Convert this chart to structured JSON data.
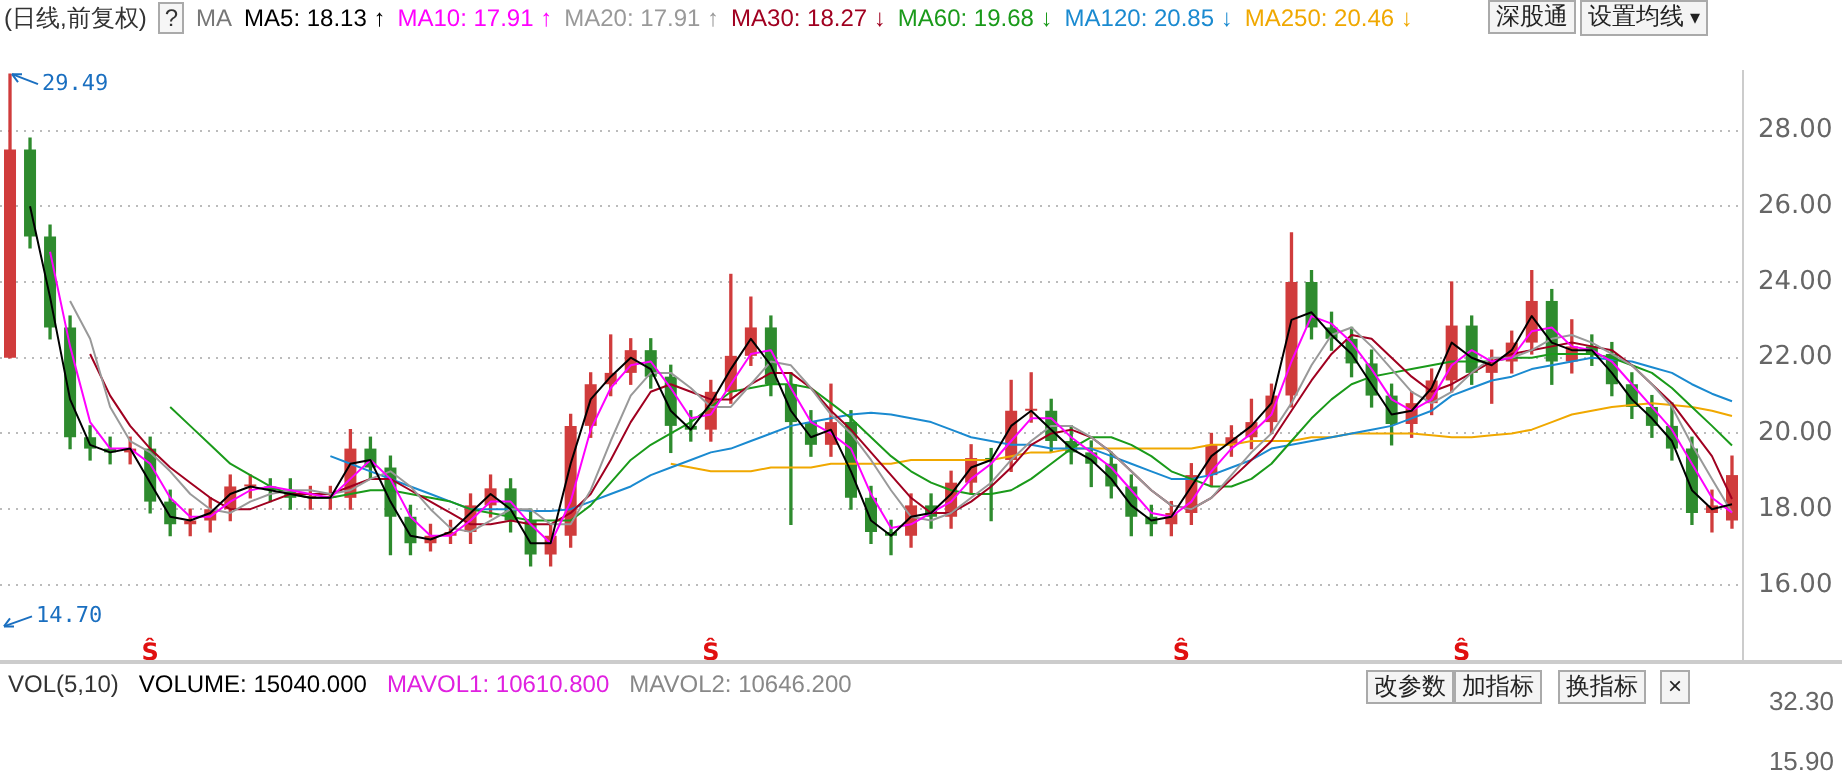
{
  "chart_data": [
    {
      "type": "candlestick",
      "title": "(日线,前复权)",
      "legend_title": "MA",
      "legend": "top left",
      "grid": "y",
      "tick_labels": "y",
      "marker": "none",
      "line_style": "solid",
      "categories": [
        null,
        null,
        null,
        null,
        null,
        null,
        null,
        null,
        null,
        null,
        null,
        null,
        null,
        null,
        null,
        null,
        null,
        null,
        null,
        null,
        null,
        null,
        null,
        null,
        null,
        null,
        null,
        null,
        null,
        null,
        null,
        null,
        null,
        null,
        null,
        null,
        null,
        null,
        null,
        null,
        null,
        null,
        null,
        null,
        null,
        null,
        null,
        null,
        null,
        null,
        null,
        null,
        null,
        null,
        null,
        null,
        null,
        null,
        null,
        null,
        null,
        null,
        null,
        null,
        null,
        null,
        null,
        null,
        null,
        null,
        null,
        null,
        null,
        null,
        null,
        null,
        null,
        null,
        null,
        null,
        null,
        null,
        null,
        null,
        null,
        null,
        null
      ],
      "ylim": [
        13.9,
        29.6
      ],
      "yticks": [
        {
          "value": 16,
          "label": "16.00"
        },
        {
          "value": 18,
          "label": "18.00"
        },
        {
          "value": 20,
          "label": "20.00"
        },
        {
          "value": 22,
          "label": "22.00"
        },
        {
          "value": 24,
          "label": "24.00"
        },
        {
          "value": 26,
          "label": "26.00"
        },
        {
          "value": 28,
          "label": "28.00"
        }
      ],
      "ohlc": [
        [
          22.0,
          29.49,
          22.0,
          27.5
        ],
        [
          27.5,
          27.8,
          24.9,
          25.2
        ],
        [
          25.2,
          25.5,
          22.5,
          22.8
        ],
        [
          22.8,
          23.1,
          19.6,
          19.9
        ],
        [
          19.9,
          20.2,
          19.3,
          19.6
        ],
        [
          19.6,
          19.9,
          19.2,
          19.5
        ],
        [
          19.5,
          19.9,
          19.2,
          19.6
        ],
        [
          19.6,
          19.9,
          17.9,
          18.2
        ],
        [
          18.2,
          18.5,
          17.3,
          17.6
        ],
        [
          17.6,
          18.0,
          17.3,
          17.7
        ],
        [
          17.7,
          18.3,
          17.4,
          18.0
        ],
        [
          18.0,
          18.9,
          17.7,
          18.6
        ],
        [
          18.6,
          18.9,
          18.3,
          18.6
        ],
        [
          18.6,
          18.8,
          18.2,
          18.5
        ],
        [
          18.5,
          18.8,
          18.0,
          18.3
        ],
        [
          18.3,
          18.6,
          18.0,
          18.3
        ],
        [
          18.3,
          18.6,
          18.0,
          18.3
        ],
        [
          18.3,
          20.1,
          18.0,
          19.6
        ],
        [
          19.6,
          19.9,
          18.8,
          19.1
        ],
        [
          19.1,
          19.4,
          16.8,
          17.8
        ],
        [
          17.8,
          18.1,
          16.8,
          17.1
        ],
        [
          17.1,
          17.6,
          16.9,
          17.3
        ],
        [
          17.3,
          17.7,
          17.1,
          17.4
        ],
        [
          17.4,
          18.4,
          17.1,
          18.1
        ],
        [
          18.1,
          18.9,
          17.8,
          18.55
        ],
        [
          18.55,
          18.8,
          17.4,
          17.7
        ],
        [
          17.7,
          18.0,
          16.5,
          16.8
        ],
        [
          16.8,
          17.6,
          16.5,
          17.3
        ],
        [
          17.3,
          20.5,
          17.0,
          20.2
        ],
        [
          20.2,
          21.6,
          19.9,
          21.3
        ],
        [
          21.3,
          22.6,
          21.0,
          21.6
        ],
        [
          21.6,
          22.5,
          21.3,
          22.2
        ],
        [
          22.2,
          22.5,
          21.2,
          21.5
        ],
        [
          21.5,
          21.8,
          19.5,
          20.2
        ],
        [
          20.2,
          20.6,
          19.8,
          20.1
        ],
        [
          20.1,
          21.4,
          19.8,
          21.1
        ],
        [
          21.1,
          24.2,
          20.8,
          22.05
        ],
        [
          22.05,
          23.6,
          21.8,
          22.8
        ],
        [
          22.8,
          23.1,
          21.0,
          21.3
        ],
        [
          21.3,
          21.6,
          17.6,
          20.3
        ],
        [
          20.3,
          20.6,
          19.4,
          19.7
        ],
        [
          19.7,
          21.3,
          19.4,
          20.3
        ],
        [
          20.3,
          20.6,
          18.0,
          18.3
        ],
        [
          18.3,
          18.6,
          17.1,
          17.4
        ],
        [
          17.4,
          17.7,
          16.8,
          17.3
        ],
        [
          17.3,
          18.4,
          17.0,
          18.1
        ],
        [
          18.1,
          18.4,
          17.5,
          17.8
        ],
        [
          17.8,
          19.0,
          17.5,
          18.7
        ],
        [
          18.7,
          19.7,
          18.4,
          19.35
        ],
        [
          19.35,
          19.6,
          17.7,
          19.3
        ],
        [
          19.3,
          21.4,
          19.0,
          20.6
        ],
        [
          20.6,
          21.6,
          20.3,
          20.6
        ],
        [
          20.6,
          20.9,
          19.5,
          19.8
        ],
        [
          19.8,
          20.2,
          19.2,
          19.5
        ],
        [
          19.5,
          19.8,
          18.6,
          19.2
        ],
        [
          19.2,
          19.5,
          18.3,
          18.6
        ],
        [
          18.6,
          18.9,
          17.3,
          17.8
        ],
        [
          17.8,
          18.1,
          17.3,
          17.6
        ],
        [
          17.6,
          18.2,
          17.3,
          17.9
        ],
        [
          17.9,
          19.2,
          17.6,
          18.9
        ],
        [
          18.9,
          20.0,
          18.6,
          19.7
        ],
        [
          19.7,
          20.2,
          19.4,
          19.9
        ],
        [
          19.9,
          20.9,
          19.6,
          20.3
        ],
        [
          20.3,
          21.3,
          20.0,
          21.0
        ],
        [
          21.0,
          25.3,
          20.7,
          24.0
        ],
        [
          24.0,
          24.3,
          22.5,
          22.8
        ],
        [
          22.8,
          23.2,
          22.2,
          22.5
        ],
        [
          22.5,
          22.8,
          21.5,
          21.85
        ],
        [
          21.85,
          22.2,
          20.7,
          21.0
        ],
        [
          21.0,
          21.3,
          19.7,
          20.25
        ],
        [
          20.25,
          21.1,
          19.9,
          20.8
        ],
        [
          20.8,
          21.7,
          20.5,
          21.4
        ],
        [
          21.4,
          24.0,
          21.1,
          22.85
        ],
        [
          22.85,
          23.1,
          21.3,
          21.6
        ],
        [
          21.6,
          22.2,
          20.8,
          21.9
        ],
        [
          21.9,
          22.7,
          21.6,
          22.4
        ],
        [
          22.4,
          24.3,
          22.1,
          23.5
        ],
        [
          23.5,
          23.8,
          21.3,
          21.9
        ],
        [
          21.9,
          23.0,
          21.6,
          22.3
        ],
        [
          22.3,
          22.6,
          21.8,
          22.1
        ],
        [
          22.1,
          22.4,
          21.0,
          21.3
        ],
        [
          21.3,
          21.6,
          20.4,
          20.7
        ],
        [
          20.7,
          21.0,
          19.9,
          20.2
        ],
        [
          20.2,
          20.8,
          19.3,
          19.6
        ],
        [
          19.6,
          19.9,
          17.6,
          17.9
        ],
        [
          17.9,
          18.5,
          17.4,
          18.1
        ],
        [
          17.7,
          19.4,
          17.5,
          18.9
        ]
      ],
      "colors": [
        "#d03c3c",
        "#2e8b2e",
        "#2e8b2e",
        "#2e8b2e",
        "#2e8b2e",
        "#2e8b2e",
        "#d03c3c",
        "#2e8b2e",
        "#2e8b2e",
        "#d03c3c",
        "#d03c3c",
        "#d03c3c",
        "#d03c3c",
        "#2e8b2e",
        "#2e8b2e",
        "#d03c3c",
        "#d03c3c",
        "#d03c3c",
        "#2e8b2e",
        "#2e8b2e",
        "#2e8b2e",
        "#d03c3c",
        "#d03c3c",
        "#d03c3c",
        "#d03c3c",
        "#2e8b2e",
        "#2e8b2e",
        "#d03c3c",
        "#d03c3c",
        "#d03c3c",
        "#d03c3c",
        "#d03c3c",
        "#2e8b2e",
        "#2e8b2e",
        "#2e8b2e",
        "#d03c3c",
        "#d03c3c",
        "#d03c3c",
        "#2e8b2e",
        "#2e8b2e",
        "#2e8b2e",
        "#d03c3c",
        "#2e8b2e",
        "#2e8b2e",
        "#2e8b2e",
        "#d03c3c",
        "#2e8b2e",
        "#d03c3c",
        "#d03c3c",
        "#2e8b2e",
        "#d03c3c",
        "#d03c3c",
        "#2e8b2e",
        "#2e8b2e",
        "#2e8b2e",
        "#2e8b2e",
        "#2e8b2e",
        "#2e8b2e",
        "#d03c3c",
        "#d03c3c",
        "#d03c3c",
        "#d03c3c",
        "#d03c3c",
        "#d03c3c",
        "#d03c3c",
        "#2e8b2e",
        "#2e8b2e",
        "#2e8b2e",
        "#2e8b2e",
        "#2e8b2e",
        "#d03c3c",
        "#d03c3c",
        "#d03c3c",
        "#2e8b2e",
        "#d03c3c",
        "#d03c3c",
        "#d03c3c",
        "#2e8b2e",
        "#d03c3c",
        "#2e8b2e",
        "#2e8b2e",
        "#2e8b2e",
        "#2e8b2e",
        "#2e8b2e",
        "#2e8b2e",
        "#d03c3c",
        "#d03c3c"
      ],
      "series": [
        {
          "type": "line",
          "name": "MA5: 18.13 ↑",
          "color": "#000000",
          "values": [
            null,
            26.0,
            23.6,
            20.9,
            19.7,
            19.5,
            19.6,
            18.7,
            17.8,
            17.7,
            17.9,
            18.4,
            18.6,
            18.5,
            18.4,
            18.3,
            18.3,
            19.2,
            19.3,
            18.2,
            17.3,
            17.2,
            17.4,
            17.9,
            18.4,
            18.0,
            17.1,
            17.1,
            19.2,
            20.9,
            21.5,
            22.0,
            21.7,
            20.6,
            20.1,
            20.8,
            21.7,
            22.5,
            21.8,
            20.6,
            19.9,
            20.1,
            19.0,
            17.7,
            17.3,
            17.8,
            17.9,
            18.4,
            19.1,
            19.3,
            20.2,
            20.6,
            20.1,
            19.6,
            19.3,
            18.8,
            18.1,
            17.7,
            17.8,
            18.6,
            19.4,
            19.8,
            20.2,
            20.8,
            23.0,
            23.2,
            22.6,
            22.1,
            21.3,
            20.5,
            20.6,
            21.2,
            22.4,
            22.0,
            21.8,
            22.2,
            23.1,
            22.4,
            22.2,
            22.2,
            21.6,
            20.9,
            20.4,
            19.8,
            18.5,
            18.0,
            18.13
          ]
        },
        {
          "type": "line",
          "name": "MA10: 17.91 ↑",
          "color": "#ff00ff",
          "values": [
            null,
            null,
            24.8,
            22.3,
            20.3,
            19.6,
            19.6,
            19.2,
            18.3,
            17.8,
            17.8,
            18.2,
            18.5,
            18.6,
            18.5,
            18.4,
            18.3,
            18.8,
            19.3,
            18.8,
            17.8,
            17.3,
            17.3,
            17.7,
            18.2,
            18.2,
            17.6,
            17.1,
            18.2,
            20.1,
            21.2,
            21.8,
            21.9,
            21.2,
            20.4,
            20.5,
            21.3,
            22.1,
            22.2,
            21.2,
            20.3,
            20.0,
            19.6,
            18.4,
            17.5,
            17.6,
            17.9,
            18.2,
            18.8,
            19.2,
            19.8,
            20.4,
            20.4,
            19.9,
            19.5,
            19.1,
            18.5,
            17.9,
            17.8,
            18.2,
            19.0,
            19.6,
            20.0,
            20.5,
            21.9,
            23.1,
            22.9,
            22.4,
            21.7,
            20.9,
            20.6,
            20.9,
            21.8,
            22.2,
            21.9,
            22.0,
            22.7,
            22.8,
            22.3,
            22.2,
            21.9,
            21.3,
            20.7,
            20.1,
            19.2,
            18.3,
            17.91
          ]
        },
        {
          "type": "line",
          "name": "MA20: 17.91 ↑",
          "color": "#999999",
          "values": [
            null,
            null,
            null,
            23.5,
            22.5,
            20.7,
            19.8,
            19.5,
            19.0,
            18.4,
            18.0,
            17.9,
            18.2,
            18.4,
            18.5,
            18.5,
            18.4,
            18.5,
            18.8,
            19.0,
            18.6,
            18.0,
            17.5,
            17.4,
            17.7,
            18.0,
            18.0,
            17.6,
            17.6,
            18.5,
            19.8,
            21.0,
            21.6,
            21.6,
            21.2,
            20.7,
            20.7,
            21.3,
            21.9,
            21.8,
            21.2,
            20.5,
            20.0,
            19.3,
            18.5,
            17.8,
            17.7,
            17.9,
            18.3,
            18.7,
            19.3,
            19.8,
            20.2,
            20.2,
            19.9,
            19.5,
            19.0,
            18.5,
            18.1,
            18.0,
            18.3,
            18.9,
            19.5,
            20.0,
            20.8,
            21.8,
            22.6,
            22.8,
            22.3,
            21.7,
            21.1,
            20.8,
            21.1,
            21.6,
            22.0,
            22.0,
            22.2,
            22.5,
            22.6,
            22.4,
            22.1,
            21.8,
            21.3,
            20.7,
            19.7,
            18.8,
            17.91
          ]
        },
        {
          "type": "line",
          "name": "MA30: 18.27 ↓",
          "color": "#a00020",
          "values": [
            null,
            null,
            null,
            null,
            22.1,
            21.0,
            20.2,
            19.6,
            19.1,
            18.7,
            18.3,
            18.0,
            18.0,
            18.2,
            18.4,
            18.4,
            18.4,
            18.6,
            18.8,
            18.8,
            18.5,
            18.2,
            17.9,
            17.6,
            17.6,
            17.7,
            17.6,
            17.6,
            17.9,
            18.4,
            19.3,
            20.3,
            21.1,
            21.3,
            21.1,
            20.9,
            20.9,
            21.3,
            21.6,
            21.6,
            21.2,
            20.6,
            20.1,
            19.5,
            18.9,
            18.3,
            17.9,
            17.9,
            18.2,
            18.6,
            19.1,
            19.7,
            20.0,
            20.1,
            19.9,
            19.5,
            19.0,
            18.5,
            18.1,
            18.0,
            18.3,
            18.8,
            19.3,
            19.8,
            20.6,
            21.4,
            22.1,
            22.6,
            22.5,
            22.0,
            21.5,
            21.1,
            21.3,
            21.6,
            21.9,
            22.1,
            22.2,
            22.3,
            22.4,
            22.3,
            22.2,
            21.8,
            21.3,
            20.8,
            20.1,
            19.4,
            18.27
          ]
        },
        {
          "type": "line",
          "name": "MA60: 19.68 ↓",
          "color": "#1a9a1a",
          "values": [
            null,
            null,
            null,
            null,
            null,
            null,
            null,
            null,
            20.7,
            20.2,
            19.7,
            19.2,
            18.9,
            18.6,
            18.4,
            18.3,
            18.3,
            18.4,
            18.5,
            18.5,
            18.4,
            18.3,
            18.2,
            18.0,
            17.9,
            17.8,
            17.7,
            17.7,
            17.7,
            18.1,
            18.7,
            19.3,
            19.7,
            20.0,
            20.3,
            20.7,
            21.1,
            21.2,
            21.3,
            21.3,
            21.2,
            20.8,
            20.4,
            19.9,
            19.4,
            19.0,
            18.7,
            18.5,
            18.4,
            18.4,
            18.5,
            18.8,
            19.2,
            19.6,
            19.9,
            19.9,
            19.7,
            19.4,
            19.0,
            18.8,
            18.6,
            18.6,
            18.8,
            19.2,
            19.8,
            20.4,
            20.9,
            21.3,
            21.5,
            21.6,
            21.7,
            21.8,
            21.9,
            21.9,
            21.9,
            22.0,
            22.0,
            22.1,
            22.1,
            22.1,
            22.0,
            21.8,
            21.6,
            21.2,
            20.7,
            20.2,
            19.68
          ]
        },
        {
          "type": "line",
          "name": "MA120: 20.85 ↓",
          "color": "#1a8ad0",
          "values": [
            null,
            null,
            null,
            null,
            null,
            null,
            null,
            null,
            null,
            null,
            null,
            null,
            null,
            null,
            null,
            null,
            19.4,
            19.2,
            19.0,
            18.8,
            18.6,
            18.4,
            18.2,
            18.0,
            18.0,
            18.0,
            17.95,
            17.95,
            18.0,
            18.2,
            18.4,
            18.6,
            18.9,
            19.1,
            19.3,
            19.5,
            19.6,
            19.8,
            20.0,
            20.2,
            20.3,
            20.4,
            20.5,
            20.55,
            20.5,
            20.4,
            20.3,
            20.1,
            19.9,
            19.8,
            19.7,
            19.7,
            19.6,
            19.6,
            19.6,
            19.4,
            19.2,
            19.0,
            18.8,
            18.8,
            18.9,
            19.1,
            19.3,
            19.6,
            19.7,
            19.8,
            19.9,
            20.0,
            20.1,
            20.2,
            20.4,
            20.6,
            21.0,
            21.2,
            21.4,
            21.5,
            21.7,
            21.8,
            21.9,
            22.0,
            21.95,
            21.9,
            21.75,
            21.6,
            21.3,
            21.05,
            20.85
          ]
        },
        {
          "type": "line",
          "name": "MA250: 20.46 ↓",
          "color": "#f0a800",
          "values": [
            null,
            null,
            null,
            null,
            null,
            null,
            null,
            null,
            null,
            null,
            null,
            null,
            null,
            null,
            null,
            null,
            null,
            null,
            null,
            null,
            null,
            null,
            null,
            null,
            null,
            null,
            null,
            null,
            null,
            null,
            null,
            null,
            null,
            19.2,
            19.1,
            19.0,
            19.0,
            19.0,
            19.1,
            19.1,
            19.1,
            19.2,
            19.2,
            19.2,
            19.2,
            19.3,
            19.3,
            19.3,
            19.3,
            19.3,
            19.4,
            19.5,
            19.5,
            19.6,
            19.6,
            19.6,
            19.6,
            19.6,
            19.6,
            19.6,
            19.7,
            19.7,
            19.8,
            19.8,
            19.8,
            19.9,
            19.9,
            20.0,
            20.0,
            20.0,
            20.0,
            19.95,
            19.9,
            19.9,
            19.95,
            20.0,
            20.1,
            20.3,
            20.5,
            20.6,
            20.7,
            20.75,
            20.8,
            20.75,
            20.7,
            20.6,
            20.46
          ]
        }
      ],
      "annotations": [
        "?",
        "深股通",
        "设置均线",
        "▾",
        "29.49",
        "14.70",
        "Ŝ",
        "Ŝ",
        "Ŝ",
        "Ŝ"
      ]
    },
    {
      "type": "other",
      "title": "VOL(5,10)",
      "annotations": [
        "VOLUME: 15040.000",
        "MAVOL1: 10610.800",
        "MAVOL2: 10646.200",
        "改参数",
        "加指标",
        "换指标",
        "×",
        "32.30",
        "15.90"
      ]
    }
  ]
}
